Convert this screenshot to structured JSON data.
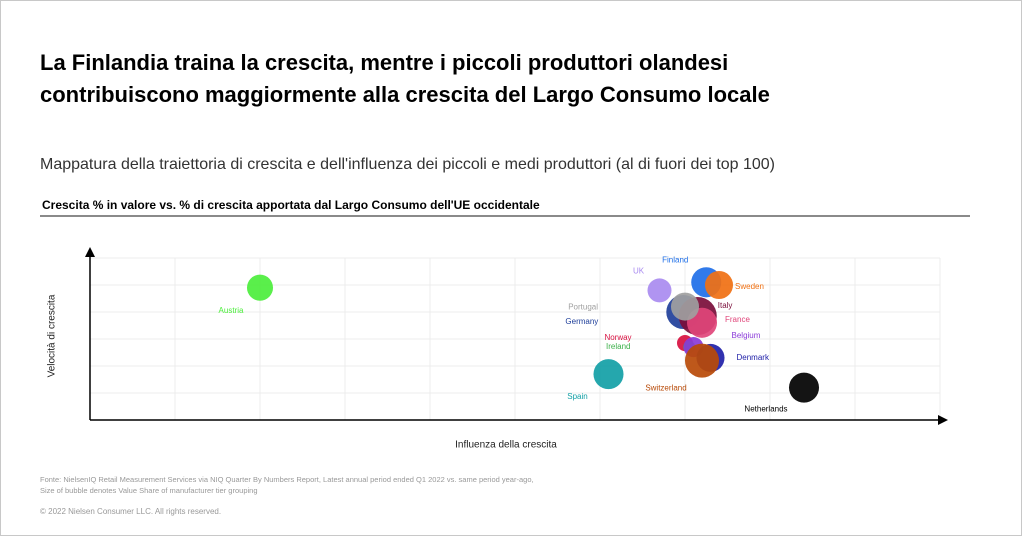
{
  "title_lines": [
    "La Finlandia traina la crescita, mentre i piccoli produttori olandesi",
    "contribuiscono maggiormente alla crescita del Largo Consumo locale"
  ],
  "subtitle": "Mappatura della traiettoria di crescita e dell'influenza dei piccoli e medi produttori (al di fuori dei top 100)",
  "chart_data": {
    "type": "bubble",
    "title": "Crescita % in valore vs. % di crescita apportata dal Largo Consumo dell'UE occidentale",
    "x_label": "Influenza della crescita",
    "y_label": "Velocità di crescita",
    "xlim": [
      0,
      10
    ],
    "ylim": [
      0,
      6
    ],
    "xticks": [
      1,
      2,
      3,
      4,
      5,
      6,
      7,
      8,
      9,
      10
    ],
    "yticks": [
      1,
      2,
      3,
      4,
      5,
      6
    ],
    "grid": true,
    "series": [
      {
        "name": "Austria",
        "color": "#4cee3c",
        "x": [
          2.0
        ],
        "values": [
          4.9
        ],
        "sizes": [
          10.6
        ]
      },
      {
        "name": "Spain",
        "color": "#12a0a6",
        "x": [
          6.1
        ],
        "values": [
          1.7
        ],
        "sizes": [
          14.1
        ]
      },
      {
        "name": "UK",
        "color": "#a98bf0",
        "x": [
          6.7
        ],
        "values": [
          4.8
        ],
        "sizes": [
          9
        ]
      },
      {
        "name": "Finland",
        "color": "#1f6fe8",
        "x": [
          7.25
        ],
        "values": [
          5.1
        ],
        "sizes": [
          14.1
        ]
      },
      {
        "name": "Sweden",
        "color": "#f07012",
        "x": [
          7.4
        ],
        "values": [
          5.0
        ],
        "sizes": [
          12.3
        ]
      },
      {
        "name": "Germany",
        "color": "#1f3f9a",
        "x": [
          6.98
        ],
        "values": [
          4.0
        ],
        "sizes": [
          18.1
        ]
      },
      {
        "name": "Italy",
        "color": "#7a0d3a",
        "x": [
          7.15
        ],
        "values": [
          3.85
        ],
        "sizes": [
          22.6
        ]
      },
      {
        "name": "France",
        "color": "#e0457a",
        "x": [
          7.2
        ],
        "values": [
          3.6
        ],
        "sizes": [
          14.1
        ]
      },
      {
        "name": "Portugal",
        "color": "#a0a0a0",
        "x": [
          7.0
        ],
        "values": [
          4.2
        ],
        "sizes": [
          12.3
        ]
      },
      {
        "name": "Norway",
        "color": "#d81040",
        "x": [
          7.0
        ],
        "values": [
          2.85
        ],
        "sizes": [
          4
        ]
      },
      {
        "name": "Ireland",
        "color": "#3cb04a",
        "x": [
          7.05
        ],
        "values": [
          2.7
        ],
        "sizes": [
          2.3
        ]
      },
      {
        "name": "Belgium",
        "color": "#8a3ad8",
        "x": [
          7.1
        ],
        "values": [
          2.7
        ],
        "sizes": [
          6.3
        ]
      },
      {
        "name": "Denmark",
        "color": "#2020a8",
        "x": [
          7.3
        ],
        "values": [
          2.3
        ],
        "sizes": [
          12.3
        ]
      },
      {
        "name": "Switzerland",
        "color": "#b84a08",
        "x": [
          7.2
        ],
        "values": [
          2.2
        ],
        "sizes": [
          18.1
        ]
      },
      {
        "name": "Netherlands",
        "color": "#000000",
        "x": [
          8.4
        ],
        "values": [
          1.2
        ],
        "sizes": [
          14.1
        ]
      }
    ]
  },
  "footnote_lines": [
    "Fonte: NielsenIQ Retail Measurement Services via NIQ Quarter By Numbers Report, Latest annual period ended Q1 2022 vs. same period year-ago,",
    "Size of bubble denotes Value Share of manufacturer tier grouping"
  ],
  "copyright": "© 2022 Nielsen Consumer LLC. All rights reserved."
}
